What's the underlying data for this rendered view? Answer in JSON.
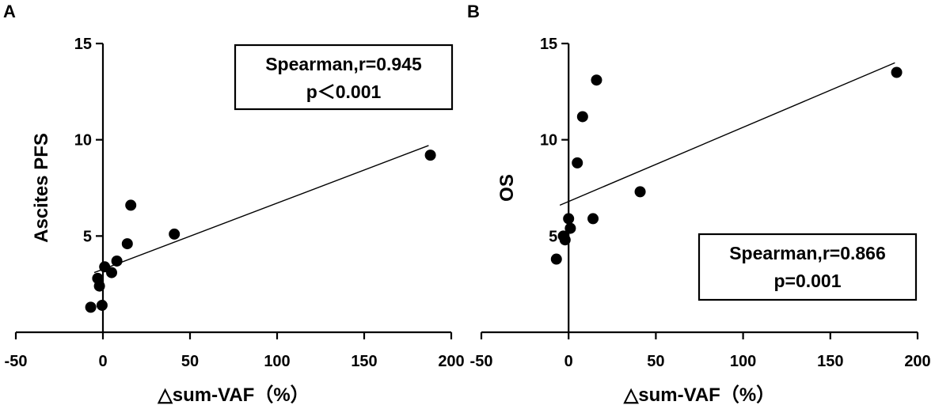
{
  "chart_data": [
    {
      "panel_label": "A",
      "type": "scatter",
      "title": "",
      "xlabel": "△sum-VAF（%）",
      "ylabel": "Ascites PFS",
      "xlim": [
        -50,
        200
      ],
      "ylim": [
        0,
        15
      ],
      "xticks": [
        -50,
        0,
        50,
        100,
        150,
        200
      ],
      "yticks": [
        5,
        10,
        15
      ],
      "xtick_labels": [
        "-50",
        "0",
        "50",
        "100",
        "150",
        "200"
      ],
      "ytick_labels": [
        "5",
        "10",
        "15"
      ],
      "points": [
        {
          "x": -7,
          "y": 1.3
        },
        {
          "x": -3,
          "y": 2.8
        },
        {
          "x": -2,
          "y": 2.4
        },
        {
          "x": -0.5,
          "y": 1.4
        },
        {
          "x": 1,
          "y": 3.4
        },
        {
          "x": 5,
          "y": 3.1
        },
        {
          "x": 8,
          "y": 3.7
        },
        {
          "x": 14,
          "y": 4.6
        },
        {
          "x": 16,
          "y": 6.6
        },
        {
          "x": 41,
          "y": 5.1
        },
        {
          "x": 188,
          "y": 9.2
        }
      ],
      "fit_line": {
        "x": [
          -5,
          187
        ],
        "y": [
          3.1,
          9.7
        ]
      },
      "annotation": {
        "line1": "Spearman,r=0.945",
        "line2": "p＜0.001"
      },
      "annotation_position": "top-right",
      "grid": false
    },
    {
      "panel_label": "B",
      "type": "scatter",
      "title": "",
      "xlabel": "△sum-VAF（%）",
      "ylabel": "OS",
      "xlim": [
        -50,
        200
      ],
      "ylim": [
        0,
        15
      ],
      "xticks": [
        -50,
        0,
        50,
        100,
        150,
        200
      ],
      "yticks": [
        5,
        10,
        15
      ],
      "xtick_labels": [
        "-50",
        "0",
        "50",
        "100",
        "150",
        "200"
      ],
      "ytick_labels": [
        "5",
        "10",
        "15"
      ],
      "points": [
        {
          "x": -7,
          "y": 3.8
        },
        {
          "x": -3,
          "y": 5.0
        },
        {
          "x": -2,
          "y": 4.8
        },
        {
          "x": 0,
          "y": 5.9
        },
        {
          "x": 1,
          "y": 5.4
        },
        {
          "x": 5,
          "y": 8.8
        },
        {
          "x": 8,
          "y": 11.2
        },
        {
          "x": 14,
          "y": 5.9
        },
        {
          "x": 16,
          "y": 13.1
        },
        {
          "x": 41,
          "y": 7.3
        },
        {
          "x": 188,
          "y": 13.5
        }
      ],
      "fit_line": {
        "x": [
          -5,
          187
        ],
        "y": [
          6.6,
          14.0
        ]
      },
      "annotation": {
        "line1": "Spearman,r=0.866",
        "line2": "p=0.001"
      },
      "annotation_position": "bottom-right",
      "grid": false
    }
  ]
}
